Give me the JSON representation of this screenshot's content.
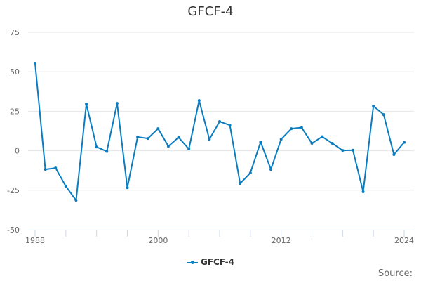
{
  "chart_data": {
    "type": "line",
    "title": "GFCF-4",
    "x": [
      1988,
      1989,
      1990,
      1991,
      1992,
      1993,
      1994,
      1995,
      1996,
      1997,
      1998,
      1999,
      2000,
      2001,
      2002,
      2003,
      2004,
      2005,
      2006,
      2007,
      2008,
      2009,
      2010,
      2011,
      2012,
      2013,
      2014,
      2015,
      2016,
      2017,
      2018,
      2019,
      2020,
      2021,
      2022,
      2023,
      2024
    ],
    "series": [
      {
        "name": "GFCF-4",
        "color": "#0a7cc0",
        "values": [
          55.4,
          -11.8,
          -10.9,
          -22.5,
          -31.4,
          29.6,
          2.4,
          -0.4,
          30.0,
          -23.4,
          8.7,
          7.8,
          14.0,
          2.9,
          8.5,
          1.1,
          31.8,
          7.3,
          18.5,
          16.2,
          -20.7,
          -14.0,
          5.6,
          -11.8,
          7.3,
          14.0,
          14.7,
          4.7,
          8.9,
          4.7,
          0.2,
          0.4,
          -26.0,
          28.3,
          22.9,
          -2.4,
          5.3
        ]
      }
    ],
    "xlim": [
      1988,
      2024
    ],
    "ylim": [
      -50,
      75
    ],
    "x_ticks": [
      "1988",
      "2000",
      "2012",
      "2024"
    ],
    "y_ticks": [
      "75",
      "50",
      "25",
      "0",
      "-25",
      "-50"
    ],
    "grid": true,
    "legend": "bottom",
    "xlabel": "",
    "ylabel": ""
  },
  "source_label": "Source:"
}
